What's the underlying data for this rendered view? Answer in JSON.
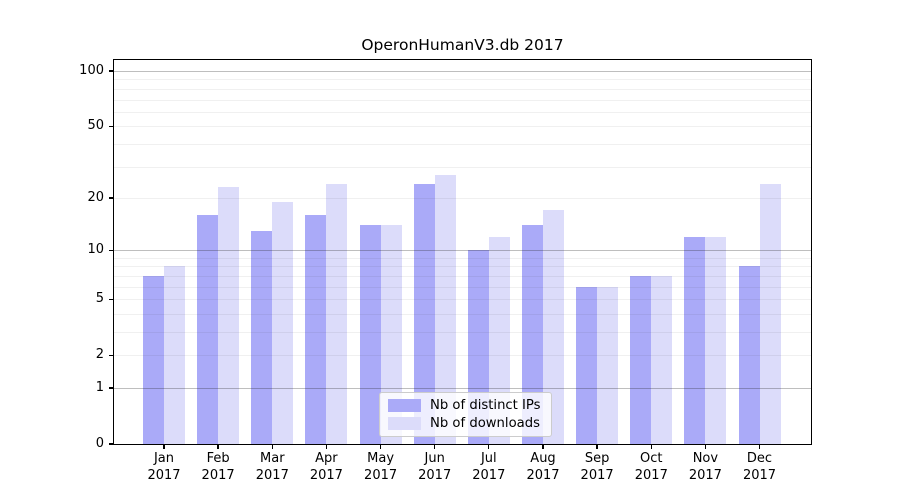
{
  "chart_data": {
    "type": "bar",
    "title": "OperonHumanV3.db 2017",
    "yscale": "log1p",
    "xlabel": "",
    "ylabel": "",
    "categories": [
      "Jan",
      "Feb",
      "Mar",
      "Apr",
      "May",
      "Jun",
      "Jul",
      "Aug",
      "Sep",
      "Oct",
      "Nov",
      "Dec"
    ],
    "year_label": "2017",
    "series": [
      {
        "name": "Nb of distinct IPs",
        "color": "#aaaaf8",
        "values": [
          7,
          16,
          13,
          16,
          14,
          24,
          10,
          14,
          6,
          7,
          12,
          8
        ]
      },
      {
        "name": "Nb of downloads",
        "color": "#dcdcfa",
        "values": [
          8,
          23,
          19,
          24,
          14,
          27,
          12,
          17,
          6,
          7,
          12,
          24
        ]
      }
    ],
    "y_ticks": [
      0,
      1,
      2,
      5,
      10,
      20,
      50,
      100
    ],
    "grid_major": [
      1,
      10,
      100
    ],
    "grid_minor": [
      2,
      3,
      4,
      5,
      6,
      7,
      8,
      9,
      20,
      30,
      40,
      50,
      60,
      70,
      80,
      90
    ],
    "ylim": [
      0,
      114
    ],
    "grid": "on",
    "legend_position": "lower center inside"
  }
}
